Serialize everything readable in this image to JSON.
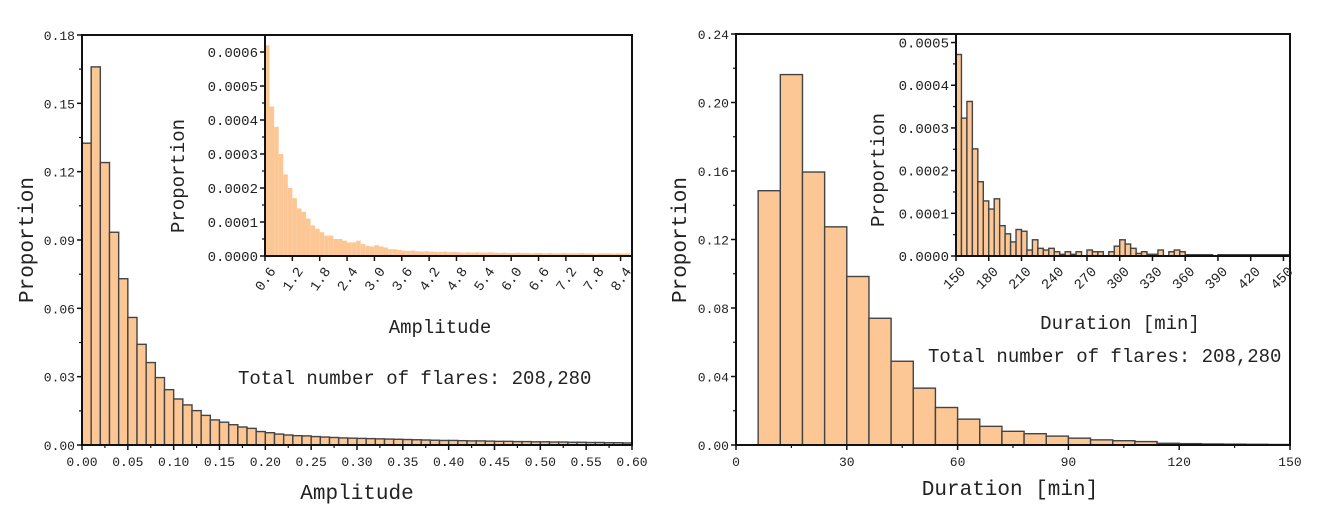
{
  "colors": {
    "bar_fill": "#fcc794",
    "bar_edge": "#444444",
    "axis": "#111111"
  },
  "chart_data": [
    {
      "id": "amplitude-main",
      "type": "bar",
      "title": "",
      "xlabel": "Amplitude",
      "ylabel": "Proportion",
      "xlim": [
        0,
        0.6
      ],
      "ylim": [
        0,
        0.18
      ],
      "bin_start": 0,
      "bin_width": 0.01,
      "values": [
        0.1325,
        0.166,
        0.124,
        0.0934,
        0.073,
        0.056,
        0.0442,
        0.0362,
        0.0296,
        0.0243,
        0.0202,
        0.0176,
        0.0151,
        0.013,
        0.011,
        0.01,
        0.0089,
        0.0079,
        0.0073,
        0.0059,
        0.0054,
        0.0048,
        0.0044,
        0.0041,
        0.004,
        0.0037,
        0.0035,
        0.0033,
        0.0031,
        0.003,
        0.0029,
        0.0028,
        0.0027,
        0.0026,
        0.0025,
        0.0024,
        0.0023,
        0.0022,
        0.0021,
        0.002,
        0.002,
        0.0019,
        0.0018,
        0.0018,
        0.0017,
        0.0016,
        0.0016,
        0.0015,
        0.0015,
        0.0014,
        0.0014,
        0.0013,
        0.0013,
        0.0012,
        0.0012,
        0.0011,
        0.0011,
        0.001,
        0.001,
        0.0009
      ],
      "xticks": [
        "0.00",
        "0.05",
        "0.10",
        "0.15",
        "0.20",
        "0.25",
        "0.30",
        "0.35",
        "0.40",
        "0.45",
        "0.50",
        "0.55",
        "0.60"
      ],
      "xtick_values": [
        0,
        0.05,
        0.1,
        0.15,
        0.2,
        0.25,
        0.3,
        0.35,
        0.4,
        0.45,
        0.5,
        0.55,
        0.6
      ],
      "yticks": [
        "0.00",
        "0.03",
        "0.06",
        "0.09",
        "0.12",
        "0.15",
        "0.18"
      ],
      "ytick_values": [
        0,
        0.03,
        0.06,
        0.09,
        0.12,
        0.15,
        0.18
      ],
      "annotation": "Total number of flares: 208,280"
    },
    {
      "id": "amplitude-inset",
      "type": "bar",
      "xlabel": "Amplitude",
      "ylabel": "Proportion",
      "xlim": [
        0.6,
        8.65
      ],
      "ylim": [
        0,
        0.00065
      ],
      "bin_start": 0.6,
      "bin_width": 0.1,
      "values": [
        0.00062,
        0.00044,
        0.00038,
        0.0003,
        0.00024,
        0.0002,
        0.00017,
        0.00014,
        0.00013,
        0.00011,
        9e-05,
        8e-05,
        7e-05,
        6e-05,
        6e-05,
        5e-05,
        5e-05,
        4.5e-05,
        4e-05,
        4e-05,
        4.5e-05,
        3.5e-05,
        3e-05,
        2.8e-05,
        3.2e-05,
        2.8e-05,
        2.5e-05,
        2e-05,
        2e-05,
        1.8e-05,
        1.6e-05,
        1.5e-05,
        1.6e-05,
        1.4e-05,
        1.3e-05,
        1.4e-05,
        1.3e-05,
        1.2e-05,
        1.2e-05,
        1.3e-05,
        1.1e-05,
        1.2e-05,
        1.1e-05,
        1e-05,
        1.1e-05,
        1e-05,
        1.1e-05,
        1e-05,
        1e-05,
        1.1e-05,
        1e-05,
        9e-06,
        1e-05,
        9e-06,
        9e-06,
        1e-05,
        9e-06,
        9e-06,
        8e-06,
        9e-06,
        9e-06,
        8e-06,
        9e-06,
        8e-06,
        8e-06,
        9e-06,
        8e-06,
        8e-06,
        8e-06,
        9e-06,
        8e-06,
        8e-06,
        7e-06,
        8e-06,
        8e-06,
        8e-06,
        7e-06,
        8e-06,
        7e-06,
        8e-06
      ],
      "xticks": [
        "0.6",
        "1.2",
        "1.8",
        "2.4",
        "3.0",
        "3.6",
        "4.2",
        "4.8",
        "5.4",
        "6.0",
        "6.6",
        "7.2",
        "7.8",
        "8.4"
      ],
      "xtick_values": [
        0.6,
        1.2,
        1.8,
        2.4,
        3.0,
        3.6,
        4.2,
        4.8,
        5.4,
        6.0,
        6.6,
        7.2,
        7.8,
        8.4
      ],
      "yticks": [
        "0.0000",
        "0.0001",
        "0.0002",
        "0.0003",
        "0.0004",
        "0.0005",
        "0.0006"
      ],
      "ytick_values": [
        0,
        0.0001,
        0.0002,
        0.0003,
        0.0004,
        0.0005,
        0.0006
      ]
    },
    {
      "id": "duration-main",
      "type": "bar",
      "xlabel": "Duration [min]",
      "ylabel": "Proportion",
      "xlim": [
        0,
        150
      ],
      "ylim": [
        0,
        0.24
      ],
      "bin_start": 6,
      "bin_width": 6,
      "values": [
        0.1485,
        0.2163,
        0.1594,
        0.1274,
        0.0984,
        0.074,
        0.0489,
        0.0332,
        0.0219,
        0.0151,
        0.0109,
        0.008,
        0.0066,
        0.0052,
        0.004,
        0.003,
        0.0025,
        0.002,
        0.001,
        0.0008,
        0.0006,
        0.0005,
        0.0004,
        0.0003
      ],
      "xticks": [
        "0",
        "30",
        "60",
        "90",
        "120",
        "150"
      ],
      "xtick_values": [
        0,
        30,
        60,
        90,
        120,
        150
      ],
      "yticks": [
        "0.00",
        "0.04",
        "0.08",
        "0.12",
        "0.16",
        "0.20",
        "0.24"
      ],
      "ytick_values": [
        0,
        0.04,
        0.08,
        0.12,
        0.16,
        0.2,
        0.24
      ],
      "annotation": "Total number of flares: 208,280"
    },
    {
      "id": "duration-inset",
      "type": "bar",
      "xlabel": "Duration [min]",
      "ylabel": "Proportion",
      "xlim": [
        150,
        456
      ],
      "ylim": [
        0,
        0.00052
      ],
      "bin_start": 150,
      "bin_width": 5,
      "values": [
        0.000472,
        0.000323,
        0.000362,
        0.000251,
        0.000174,
        0.000129,
        0.00011,
        0.000134,
        7.1e-05,
        5.2e-05,
        3.3e-05,
        6.2e-05,
        5.8e-05,
        1.4e-05,
        3.8e-05,
        1.8e-05,
        1.4e-05,
        1.8e-05,
        1e-05,
        4e-06,
        1e-05,
        4e-06,
        1e-05,
        0,
        1.4e-05,
        1e-05,
        1e-05,
        0,
        1e-05,
        2.3e-05,
        3.8e-05,
        2.8e-05,
        1.8e-05,
        6e-06,
        1e-05,
        4e-06,
        4e-06,
        1.4e-05,
        0,
        1e-05,
        1.4e-05,
        1e-05,
        3e-06,
        3e-06,
        3e-06,
        3e-06,
        3e-06,
        0,
        3e-06,
        3e-06,
        3e-06,
        3e-06,
        3e-06,
        3e-06,
        3e-06,
        3e-06,
        3e-06,
        3e-06,
        3e-06,
        3e-06,
        3e-06
      ],
      "xticks": [
        "150",
        "180",
        "210",
        "240",
        "270",
        "300",
        "330",
        "360",
        "390",
        "420",
        "450"
      ],
      "xtick_values": [
        150,
        180,
        210,
        240,
        270,
        300,
        330,
        360,
        390,
        420,
        450
      ],
      "yticks": [
        "0.0000",
        "0.0001",
        "0.0002",
        "0.0003",
        "0.0004",
        "0.0005"
      ],
      "ytick_values": [
        0,
        0.0001,
        0.0002,
        0.0003,
        0.0004,
        0.0005
      ]
    }
  ]
}
